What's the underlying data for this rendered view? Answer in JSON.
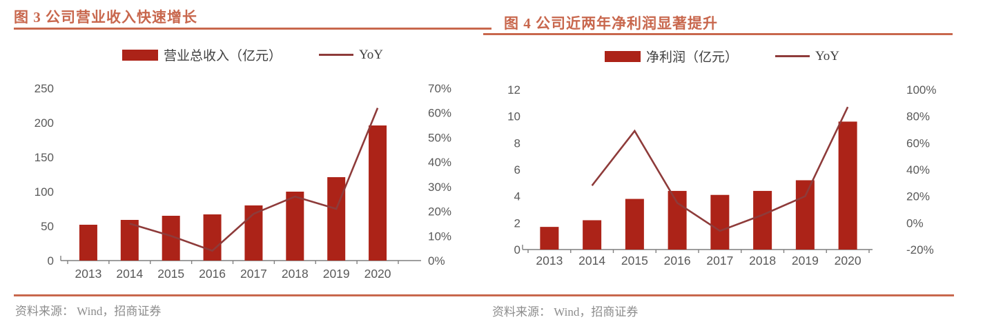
{
  "theme": {
    "accent": "#C8674D",
    "bar_color": "#AC2318",
    "line_color": "#8E3B3A",
    "axis_text_color": "#595959",
    "source_text_color": "#8C8C8C"
  },
  "figures": [
    {
      "title": "图 3 公司营业收入快速增长",
      "source": "资料来源： Wind，招商证券"
    },
    {
      "title": "图 4 公司近两年净利润显著提升",
      "source": "资料来源： Wind，招商证券"
    }
  ],
  "chart_data": [
    {
      "type": "bar",
      "title": "图 3 公司营业收入快速增长",
      "categories": [
        "2013",
        "2014",
        "2015",
        "2016",
        "2017",
        "2018",
        "2019",
        "2020"
      ],
      "series": [
        {
          "name": "营业总收入（亿元）",
          "type": "bar",
          "axis": "left",
          "values": [
            52,
            59,
            65,
            67,
            80,
            100,
            121,
            196
          ]
        },
        {
          "name": "YoY",
          "type": "line",
          "axis": "right",
          "values": [
            null,
            15,
            10,
            4,
            19,
            26,
            21,
            62
          ]
        }
      ],
      "left_axis": {
        "min": 0,
        "max": 250,
        "ticks": [
          0,
          50,
          100,
          150,
          200,
          250
        ]
      },
      "right_axis": {
        "min": 0,
        "max": 70,
        "unit": "%",
        "ticks": [
          "0%",
          "10%",
          "20%",
          "30%",
          "40%",
          "50%",
          "60%",
          "70%"
        ]
      },
      "grid": false,
      "legend_position": "top"
    },
    {
      "type": "bar",
      "title": "图 4 公司近两年净利润显著提升",
      "categories": [
        "2013",
        "2014",
        "2015",
        "2016",
        "2017",
        "2018",
        "2019",
        "2020"
      ],
      "series": [
        {
          "name": "净利润（亿元）",
          "type": "bar",
          "axis": "left",
          "values": [
            1.7,
            2.2,
            3.8,
            4.4,
            4.1,
            4.4,
            5.2,
            9.6
          ]
        },
        {
          "name": "YoY",
          "type": "line",
          "axis": "right",
          "values": [
            null,
            28,
            69,
            15,
            -6,
            6,
            20,
            87
          ]
        }
      ],
      "left_axis": {
        "min": 0,
        "max": 12,
        "ticks": [
          0,
          2,
          4,
          6,
          8,
          10,
          12
        ]
      },
      "right_axis": {
        "min": -20,
        "max": 100,
        "unit": "%",
        "ticks": [
          "-20%",
          "0%",
          "20%",
          "40%",
          "60%",
          "80%",
          "100%"
        ]
      },
      "grid": false,
      "legend_position": "top"
    }
  ]
}
